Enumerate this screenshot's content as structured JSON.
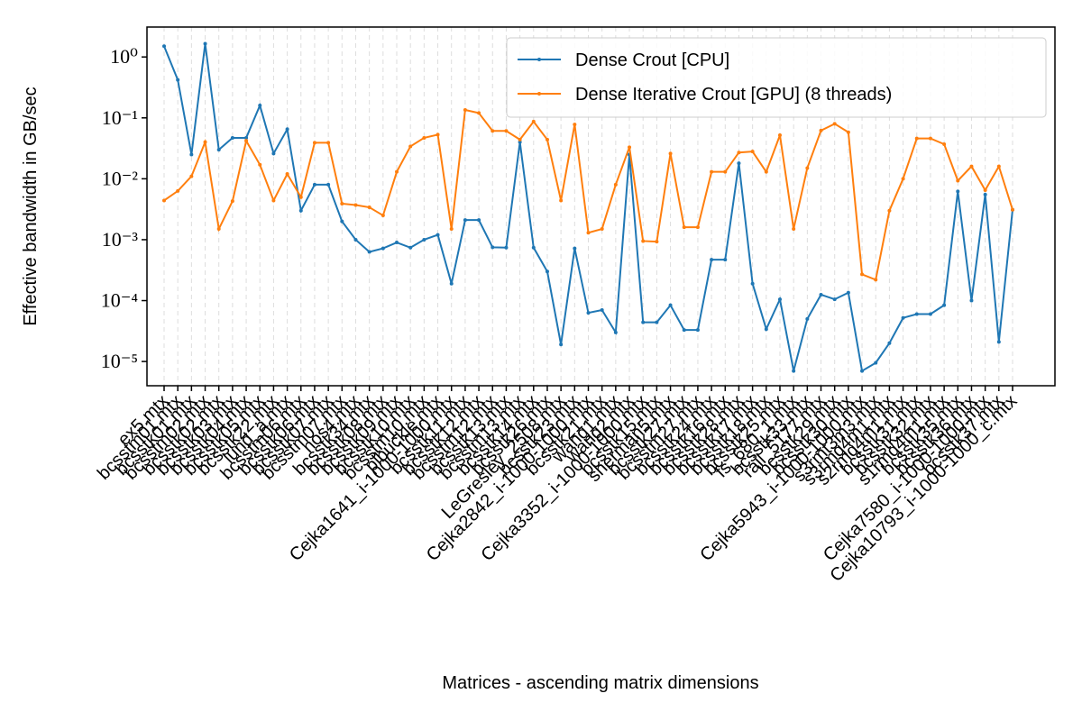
{
  "chart_data": {
    "type": "line",
    "xlabel": "Matrices - ascending matrix dimensions",
    "ylabel": "Effective bandwidth in GB/sec",
    "log_y": true,
    "grid": true,
    "legend": "upper right",
    "categories": [
      "ex5.mtx",
      "bcsstm01.mtx",
      "bcsstk01.mtx",
      "bcsstm02.mtx",
      "bcsstk02.mtx",
      "bcsstk03.mtx",
      "bcsstk04.mtx",
      "bcsstk05.mtx",
      "bcsstk22.mtx",
      "lund_a.mtx",
      "bcsstm06.mtx",
      "bcsstk06.mtx",
      "bcsstk07.mtx",
      "bcsstm07.mtx",
      "nos4.mtx",
      "bcsstk34.mtx",
      "bcsstk08.mtx",
      "bcsstk09.mtx",
      "bcsstk10.mtx",
      "bcsstm10.mtx",
      "plbuckle.mtx",
      "Cejka1641_i-1000-1000.mtx",
      "bcsstk11.mtx",
      "bcsstk12.mtx",
      "bcsstm12.mtx",
      "bcsstk13.mtx",
      "bcsstm13.mtx",
      "bcsstk14.mtx",
      "bcsstk26.mtx",
      "LeGresley_2508.mtx",
      "bcsstk23.mtx",
      "Cejka2842_i-1000-1000.mtx",
      "bcsstk21.mtx",
      "wang1.mtx",
      "wang2.mtx",
      "Cejka3352_i-1000-1000.mtx",
      "bcsstk15.mtx",
      "sherman5.mtx",
      "bcsstk27.mtx",
      "bcsstm27.mtx",
      "bcsstk24.mtx",
      "bcsstk16.mtx",
      "bcsstk28.mtx",
      "bcsstk17.mtx",
      "bcsstk18.mtx",
      "bcsstk25.mtx",
      "fs_680_1.mtx",
      "bcsstk33.mtx",
      "rail_5177.mtx",
      "bcsstk29.mtx",
      "bcsstk30.mtx",
      "Cejka5943_i-1000-1000.mtx",
      "s3rmt3m3.mtx",
      "s3rmq4m1.mtx",
      "s2rmq4m1.mtx",
      "bcsstk31.mtx",
      "bcsstk32.mtx",
      "s1rmq4m1.mtx",
      "bcsstk35.mtx",
      "bcsstk36.mtx",
      "Cejka7580_i-1000-1000.mtx",
      "bcsstk37.mtx",
      "Cejka10793_i-1000-1000_c.mtx"
    ],
    "series": [
      {
        "name": "Dense Crout [CPU]",
        "color": "#1f77b4",
        "values": [
          1.5,
          0.42,
          0.025,
          1.65,
          0.03,
          0.047,
          0.047,
          0.16,
          0.026,
          0.065,
          0.003,
          0.008,
          0.008,
          0.002,
          0.001,
          0.00063,
          0.00072,
          0.0009,
          0.00074,
          0.001,
          0.0012,
          0.00019,
          0.0021,
          0.0021,
          0.00075,
          0.00074,
          0.04,
          0.00074,
          0.0003,
          1.9e-05,
          0.00072,
          6.3e-05,
          7e-05,
          3e-05,
          0.025,
          4.4e-05,
          4.4e-05,
          8.4e-05,
          3.3e-05,
          3.3e-05,
          0.00047,
          0.00047,
          0.018,
          0.00019,
          3.4e-05,
          0.000105,
          7e-06,
          5e-05,
          0.000125,
          0.000105,
          0.000135,
          7e-06,
          9.5e-06,
          2e-05,
          5.2e-05,
          6e-05,
          6e-05,
          8.4e-05,
          0.0062,
          0.0001,
          0.0055,
          2.1e-05,
          0.0031
        ]
      },
      {
        "name": "Dense Iterative Crout [GPU] (8 threads)",
        "color": "#ff7f0e",
        "values": [
          0.0044,
          0.0063,
          0.011,
          0.04,
          0.0015,
          0.0043,
          0.042,
          0.017,
          0.0044,
          0.012,
          0.005,
          0.039,
          0.039,
          0.0039,
          0.0037,
          0.0034,
          0.0025,
          0.013,
          0.034,
          0.047,
          0.053,
          0.0015,
          0.135,
          0.12,
          0.061,
          0.061,
          0.044,
          0.087,
          0.044,
          0.0044,
          0.078,
          0.0013,
          0.0015,
          0.008,
          0.033,
          0.00095,
          0.00093,
          0.026,
          0.0016,
          0.0016,
          0.013,
          0.013,
          0.027,
          0.028,
          0.013,
          0.052,
          0.0015,
          0.015,
          0.062,
          0.08,
          0.058,
          0.00027,
          0.00022,
          0.003,
          0.01,
          0.046,
          0.046,
          0.037,
          0.0093,
          0.016,
          0.0065,
          0.016,
          0.0031
        ]
      }
    ],
    "ylim": [
      4e-06,
      3.1
    ],
    "yticks": [
      {
        "value": 1e-05,
        "label": "10⁻⁵"
      },
      {
        "value": 0.0001,
        "label": "10⁻⁴"
      },
      {
        "value": 0.001,
        "label": "10⁻³"
      },
      {
        "value": 0.01,
        "label": "10⁻²"
      },
      {
        "value": 0.1,
        "label": "10⁻¹"
      },
      {
        "value": 1,
        "label": "10⁰"
      }
    ]
  }
}
